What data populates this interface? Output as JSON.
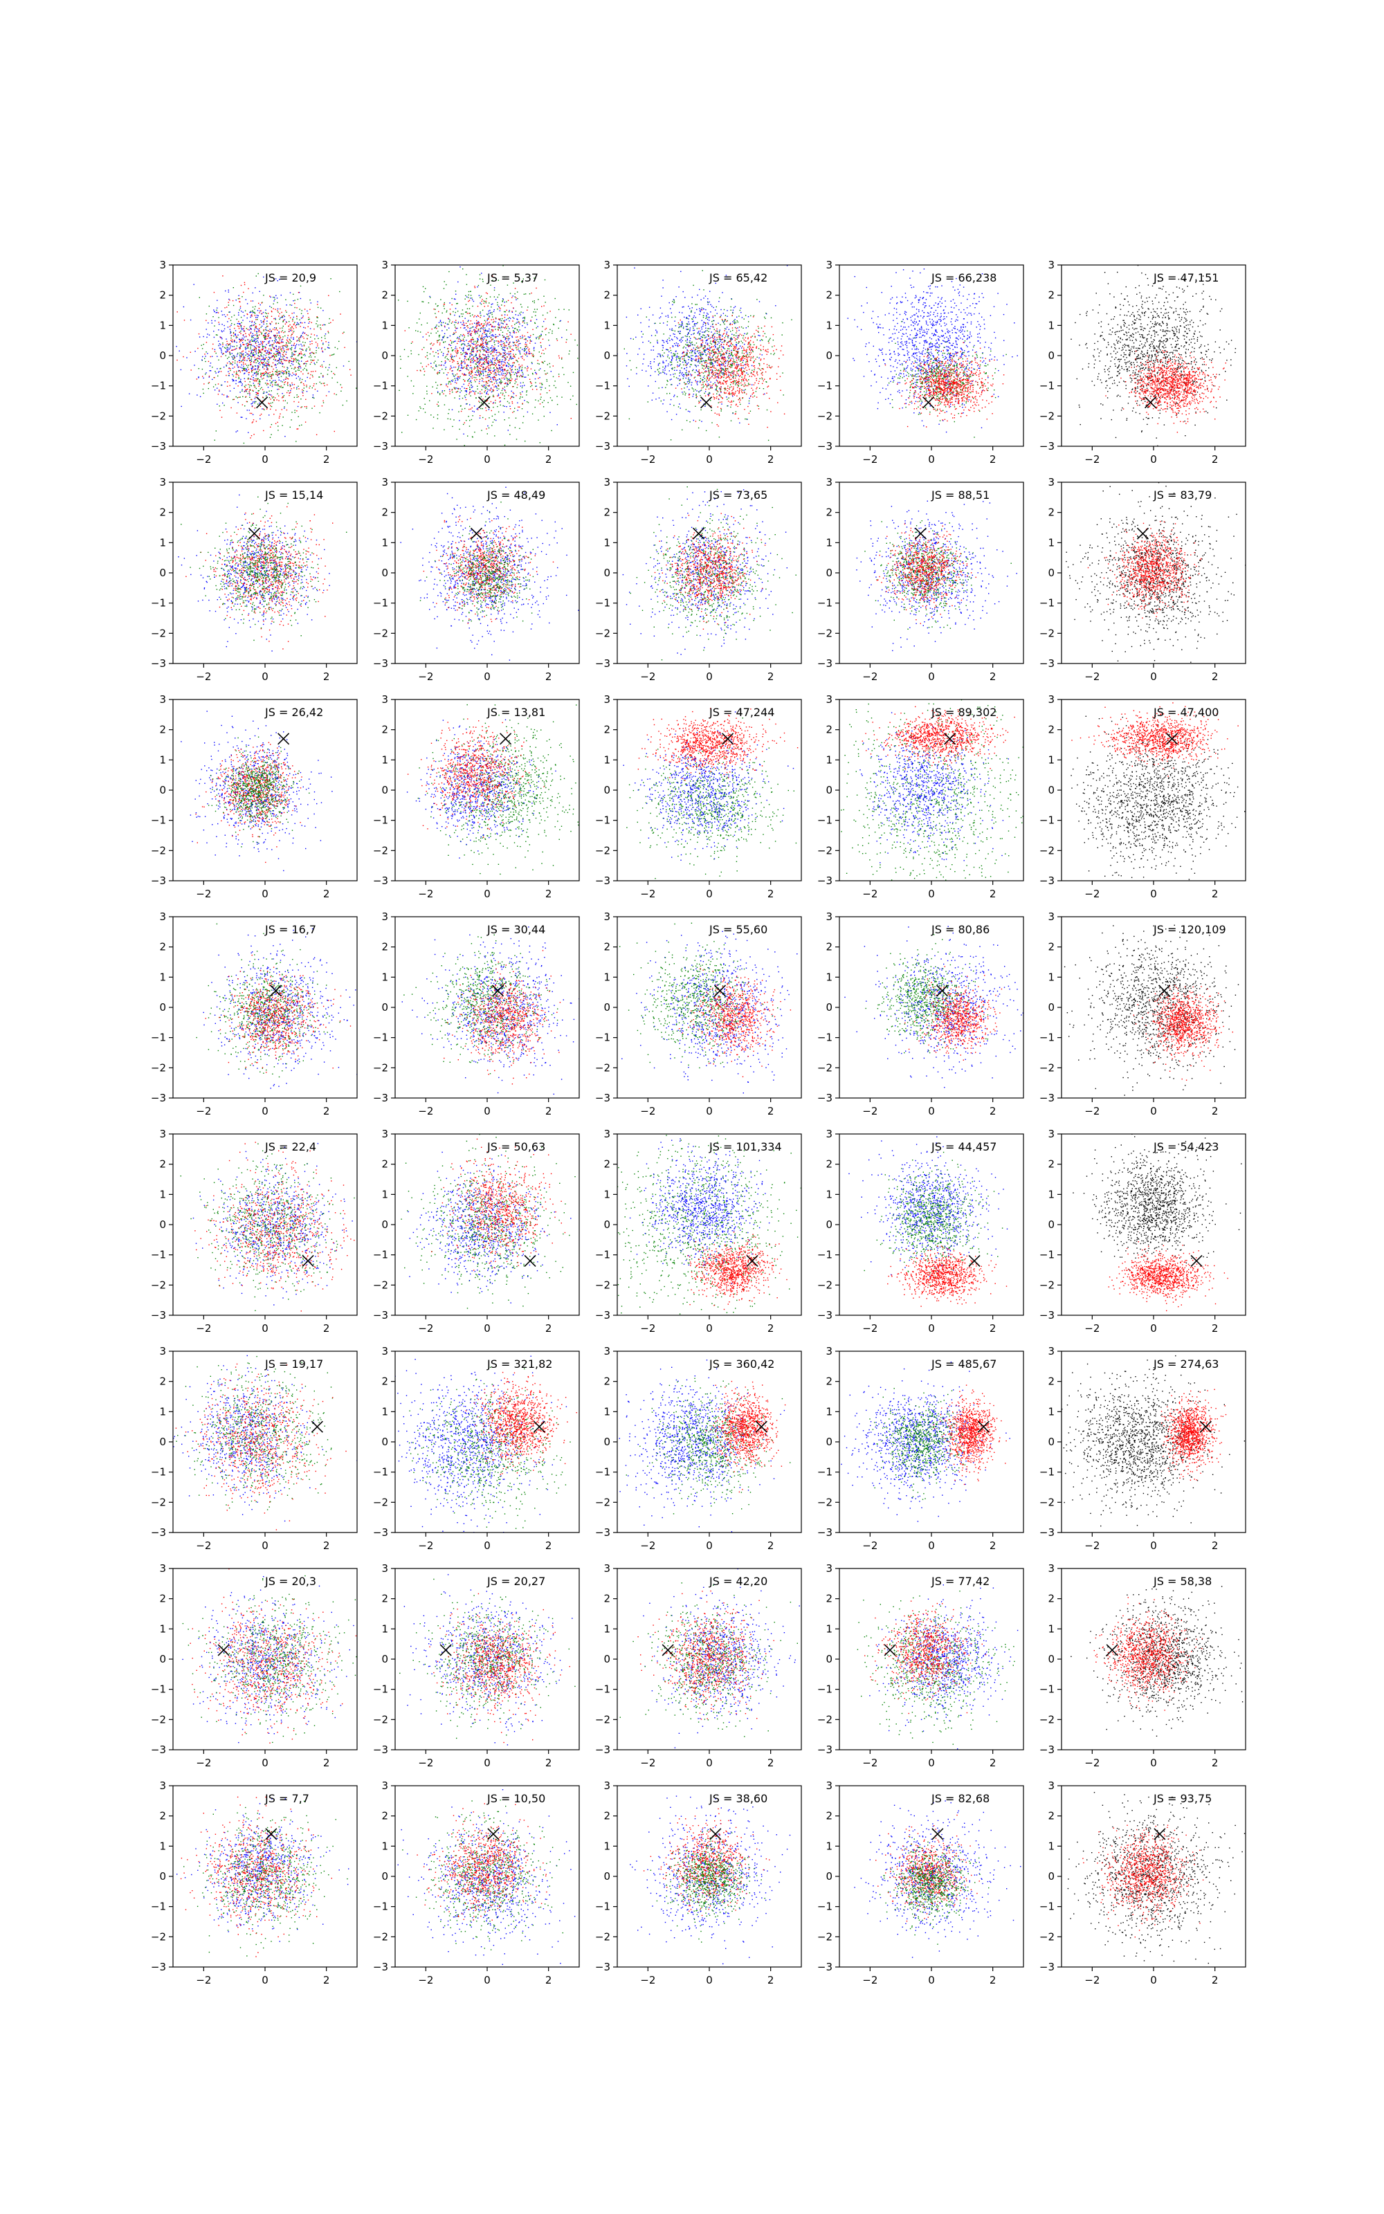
{
  "chart_data": {
    "type": "scatter",
    "grid": false,
    "rows": 8,
    "cols": 5,
    "xlim": [
      -3,
      3
    ],
    "ylim": [
      -3,
      3
    ],
    "xticks": [
      -2,
      0,
      2
    ],
    "yticks": [
      -3,
      -2,
      -1,
      0,
      1,
      2,
      3
    ],
    "colors": {
      "red": "#ff0000",
      "green": "#008000",
      "blue": "#0000ff",
      "black": "#000000"
    },
    "rows_data": [
      {
        "marker": [
          -0.1,
          -1.55
        ],
        "labels": [
          "JS = 20,9",
          "JS = 5,37",
          "JS = 65,42",
          "JS = 66,238",
          "JS = 47,151"
        ]
      },
      {
        "marker": [
          -0.35,
          1.3
        ],
        "labels": [
          "JS = 15,14",
          "JS = 48,49",
          "JS = 73,65",
          "JS = 88,51",
          "JS = 83,79"
        ]
      },
      {
        "marker": [
          0.6,
          1.7
        ],
        "labels": [
          "JS = 26,42",
          "JS = 13,81",
          "JS = 47,244",
          "JS = 89,302",
          "JS = 47,400"
        ]
      },
      {
        "marker": [
          0.35,
          0.55
        ],
        "labels": [
          "JS = 16,7",
          "JS = 30,44",
          "JS = 55,60",
          "JS = 80,86",
          "JS = 120,109"
        ]
      },
      {
        "marker": [
          1.4,
          -1.2
        ],
        "labels": [
          "JS = 22,4",
          "JS = 50,63",
          "JS = 101,334",
          "JS = 44,457",
          "JS = 54,423"
        ]
      },
      {
        "marker": [
          1.7,
          0.5
        ],
        "labels": [
          "JS = 19,17",
          "JS = 321,82",
          "JS = 360,42",
          "JS = 485,67",
          "JS = 274,63"
        ]
      },
      {
        "marker": [
          -1.35,
          0.3
        ],
        "labels": [
          "JS = 20,3",
          "JS = 20,27",
          "JS = 42,20",
          "JS = 77,42",
          "JS = 58,38"
        ]
      },
      {
        "marker": [
          0.2,
          1.4
        ],
        "labels": [
          "JS = 7,7",
          "JS = 10,50",
          "JS = 38,60",
          "JS = 82,68",
          "JS = 93,75"
        ]
      }
    ]
  }
}
